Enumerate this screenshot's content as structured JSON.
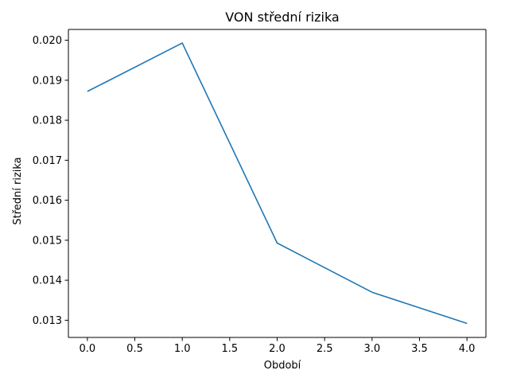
{
  "chart_data": {
    "type": "line",
    "title": "VON střední rizika",
    "xlabel": "Období",
    "ylabel": "Střední rizika",
    "x": [
      0,
      1,
      2,
      3,
      4
    ],
    "series": [
      {
        "values": [
          0.01872,
          0.01993,
          0.01493,
          0.0137,
          0.01292
        ]
      }
    ],
    "xlim": [
      -0.2,
      4.2
    ],
    "ylim": [
      0.01257,
      0.02027
    ],
    "xticks": [
      0.0,
      0.5,
      1.0,
      1.5,
      2.0,
      2.5,
      3.0,
      3.5,
      4.0
    ],
    "xtick_labels": [
      "0.0",
      "0.5",
      "1.0",
      "1.5",
      "2.0",
      "2.5",
      "3.0",
      "3.5",
      "4.0"
    ],
    "yticks": [
      0.013,
      0.014,
      0.015,
      0.016,
      0.017,
      0.018,
      0.019,
      0.02
    ],
    "ytick_labels": [
      "0.013",
      "0.014",
      "0.015",
      "0.016",
      "0.017",
      "0.018",
      "0.019",
      "0.020"
    ],
    "grid": false,
    "line_color": "#1f77b4"
  }
}
